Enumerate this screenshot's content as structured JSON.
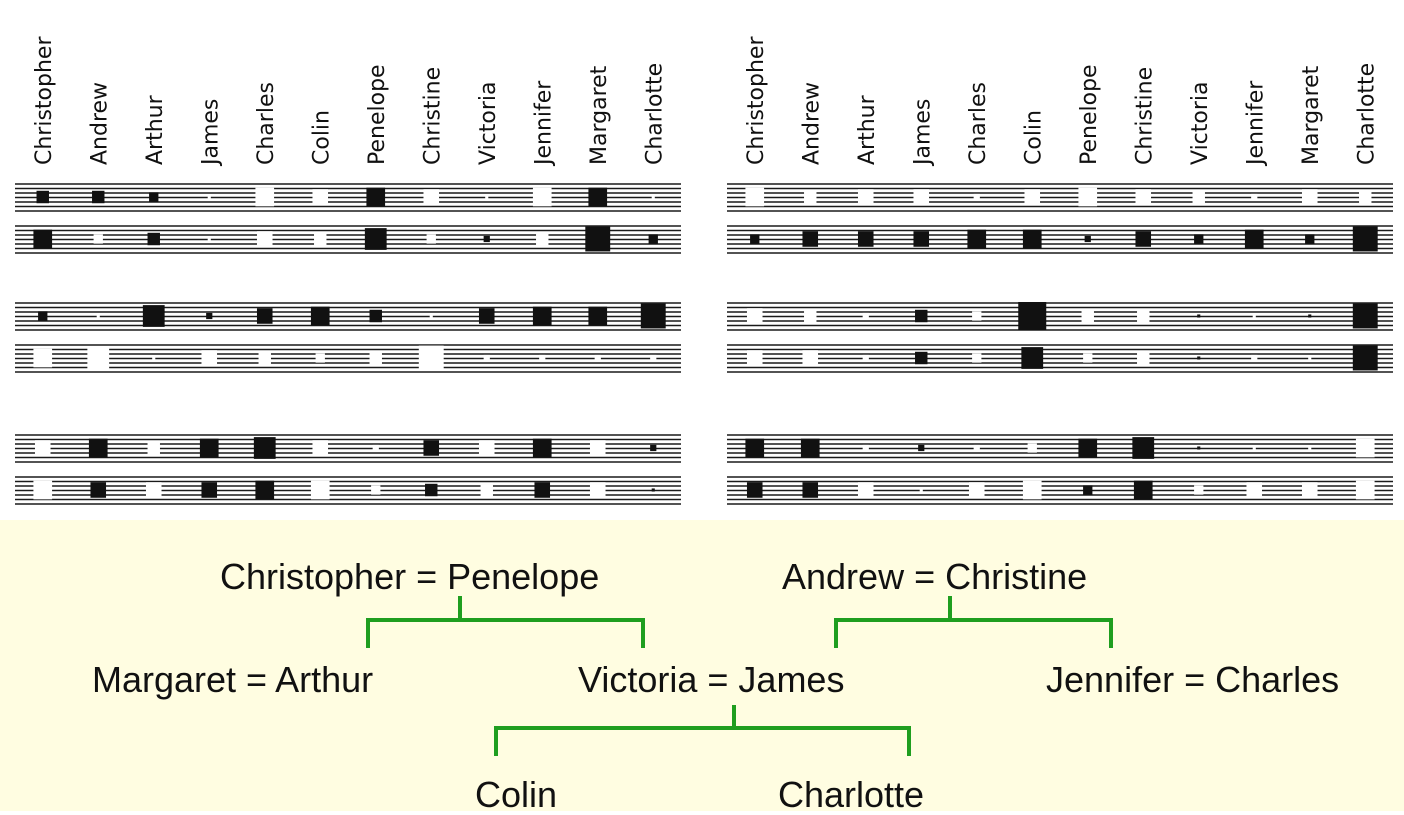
{
  "colors": {
    "stripe": "#1a1a1a",
    "positive_weight": "#111111",
    "negative_weight": "#ffffff",
    "tree_line": "#1f9e1f",
    "tree_background": "#fffde1"
  },
  "people": [
    "Christopher",
    "Andrew",
    "Arthur",
    "James",
    "Charles",
    "Colin",
    "Penelope",
    "Christine",
    "Victoria",
    "Jennifer",
    "Margaret",
    "Charlotte"
  ],
  "weight_panels": [
    {
      "units": [
        {
          "rows": [
            [
              4,
              4,
              3,
              -1,
              -6,
              -5,
              6,
              -5,
              -1,
              -6,
              6,
              -1
            ],
            [
              6,
              -3,
              4,
              -1,
              -5,
              -4,
              7,
              -3,
              2,
              -4,
              8,
              3
            ]
          ]
        },
        {
          "rows": [
            [
              3,
              -1,
              7,
              2,
              5,
              6,
              4,
              -1,
              5,
              6,
              6,
              8
            ],
            [
              -6,
              -7,
              -1,
              -5,
              -4,
              -3,
              -4,
              -8,
              -2,
              -2,
              -2,
              -2
            ]
          ]
        },
        {
          "rows": [
            [
              -5,
              6,
              -4,
              6,
              7,
              -5,
              -2,
              5,
              -5,
              6,
              -5,
              2
            ],
            [
              -6,
              5,
              -5,
              5,
              6,
              -6,
              -3,
              4,
              -4,
              5,
              -5,
              1
            ]
          ]
        }
      ]
    },
    {
      "units": [
        {
          "rows": [
            [
              -6,
              -4,
              -5,
              -5,
              -2,
              -5,
              -6,
              -5,
              -4,
              -2,
              -5,
              -4
            ],
            [
              3,
              5,
              5,
              5,
              6,
              6,
              2,
              5,
              3,
              6,
              3,
              8
            ]
          ]
        },
        {
          "rows": [
            [
              -5,
              -4,
              -2,
              4,
              -3,
              9,
              -4,
              -4,
              1,
              -1,
              1,
              8
            ],
            [
              -5,
              -5,
              -2,
              4,
              -3,
              7,
              -3,
              -4,
              1,
              -2,
              -1,
              8
            ]
          ]
        },
        {
          "rows": [
            [
              6,
              6,
              -2,
              2,
              -2,
              -3,
              6,
              7,
              1,
              -1,
              -1,
              -6
            ],
            [
              5,
              5,
              -5,
              -1,
              -5,
              -6,
              3,
              6,
              -3,
              -5,
              -5,
              -6
            ]
          ]
        }
      ]
    }
  ],
  "family_tree": {
    "couples": [
      {
        "id": "christopher-penelope",
        "label": "Christopher = Penelope"
      },
      {
        "id": "andrew-christine",
        "label": "Andrew = Christine"
      },
      {
        "id": "margaret-arthur",
        "label": "Margaret = Arthur"
      },
      {
        "id": "victoria-james",
        "label": "Victoria = James"
      },
      {
        "id": "jennifer-charles",
        "label": "Jennifer = Charles"
      }
    ],
    "children": [
      {
        "id": "colin",
        "label": "Colin"
      },
      {
        "id": "charlotte",
        "label": "Charlotte"
      }
    ],
    "links": [
      {
        "parent": "christopher-penelope",
        "children": [
          "margaret-arthur",
          "victoria-james"
        ]
      },
      {
        "parent": "andrew-christine",
        "children": [
          "victoria-james",
          "jennifer-charles"
        ]
      },
      {
        "parent": "victoria-james",
        "children": [
          "colin",
          "charlotte"
        ]
      }
    ]
  }
}
